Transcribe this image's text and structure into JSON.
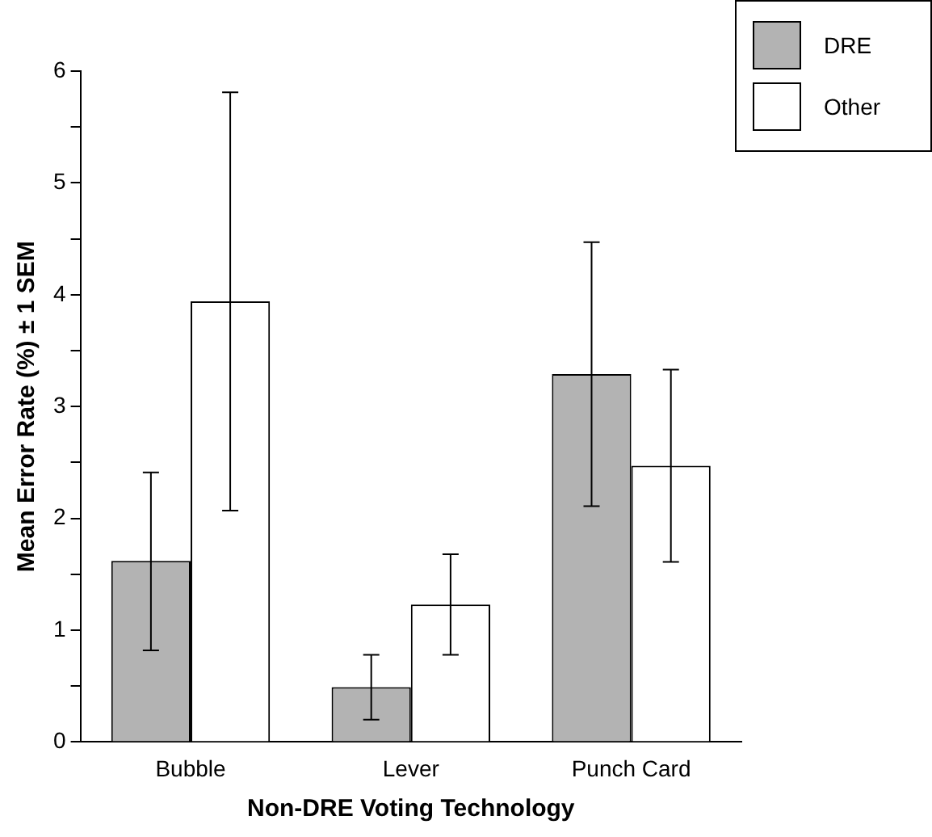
{
  "chart_data": {
    "type": "bar",
    "xlabel": "Non-DRE Voting Technology",
    "ylabel": "Mean Error Rate (%) ± 1 SEM",
    "categories": [
      "Bubble",
      "Lever",
      "Punch Card"
    ],
    "series": [
      {
        "name": "DRE",
        "color": "#b3b3b3",
        "values": [
          1.62,
          0.49,
          3.29
        ],
        "errors": [
          [
            0.82,
            2.41
          ],
          [
            0.2,
            0.78
          ],
          [
            2.11,
            4.47
          ]
        ]
      },
      {
        "name": "Other",
        "color": "#ffffff",
        "values": [
          3.94,
          1.23,
          2.47
        ],
        "errors": [
          [
            2.07,
            5.81
          ],
          [
            0.78,
            1.68
          ],
          [
            1.61,
            3.33
          ]
        ]
      }
    ],
    "ylim": [
      0,
      6
    ],
    "yticks": [
      0,
      {
        "value": 0.5,
        "label": null
      },
      1,
      {
        "value": 1.5,
        "label": null
      },
      2,
      {
        "value": 2.5,
        "label": null
      },
      3,
      {
        "value": 3.5,
        "label": null
      },
      4,
      {
        "value": 4.5,
        "label": null
      },
      5,
      {
        "value": 5.5,
        "label": null
      },
      6
    ],
    "grid": false,
    "legend": "top right"
  }
}
